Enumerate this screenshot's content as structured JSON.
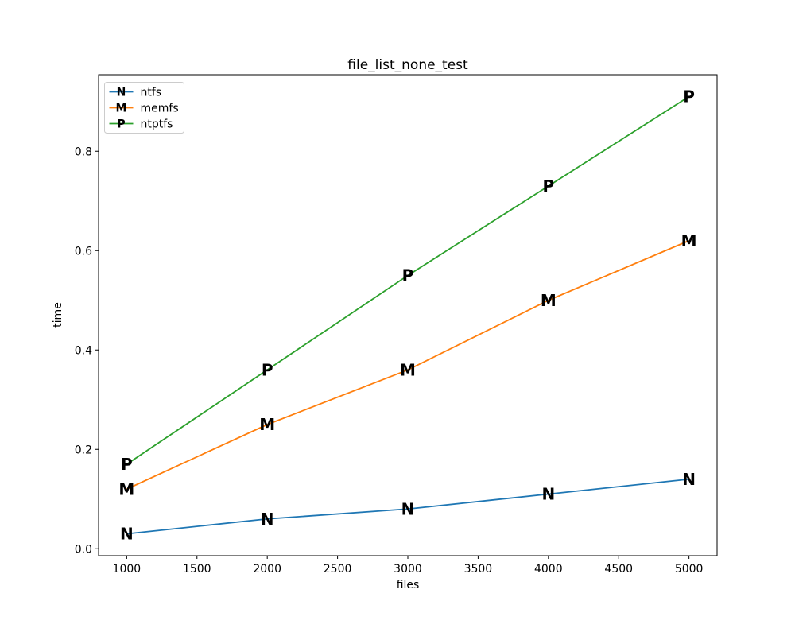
{
  "figure": {
    "background": "#ffffff"
  },
  "chart_data": {
    "type": "line",
    "title": "file_list_none_test",
    "xlabel": "files",
    "ylabel": "time",
    "x": [
      1000,
      2000,
      3000,
      4000,
      5000
    ],
    "series": [
      {
        "name": "ntfs",
        "marker": "N",
        "color": "#1f77b4",
        "values": [
          0.03,
          0.06,
          0.08,
          0.11,
          0.14
        ]
      },
      {
        "name": "memfs",
        "marker": "M",
        "color": "#ff7f0e",
        "values": [
          0.12,
          0.25,
          0.36,
          0.5,
          0.62
        ]
      },
      {
        "name": "ntptfs",
        "marker": "P",
        "color": "#2ca02c",
        "values": [
          0.17,
          0.36,
          0.55,
          0.73,
          0.91
        ]
      }
    ],
    "xlim": [
      800,
      5200
    ],
    "ylim": [
      -0.014,
      0.954
    ],
    "x_ticks": [
      1000,
      1500,
      2000,
      2500,
      3000,
      3500,
      4000,
      4500,
      5000
    ],
    "y_ticks": [
      0.0,
      0.2,
      0.4,
      0.6,
      0.8
    ],
    "grid": false,
    "legend": {
      "position": "upper left",
      "entries": [
        "ntfs",
        "memfs",
        "ntptfs"
      ]
    },
    "axis_color": "#000000",
    "tick_label_color": "#000000",
    "legend_border_color": "#cccccc",
    "legend_background": "#ffffff"
  }
}
